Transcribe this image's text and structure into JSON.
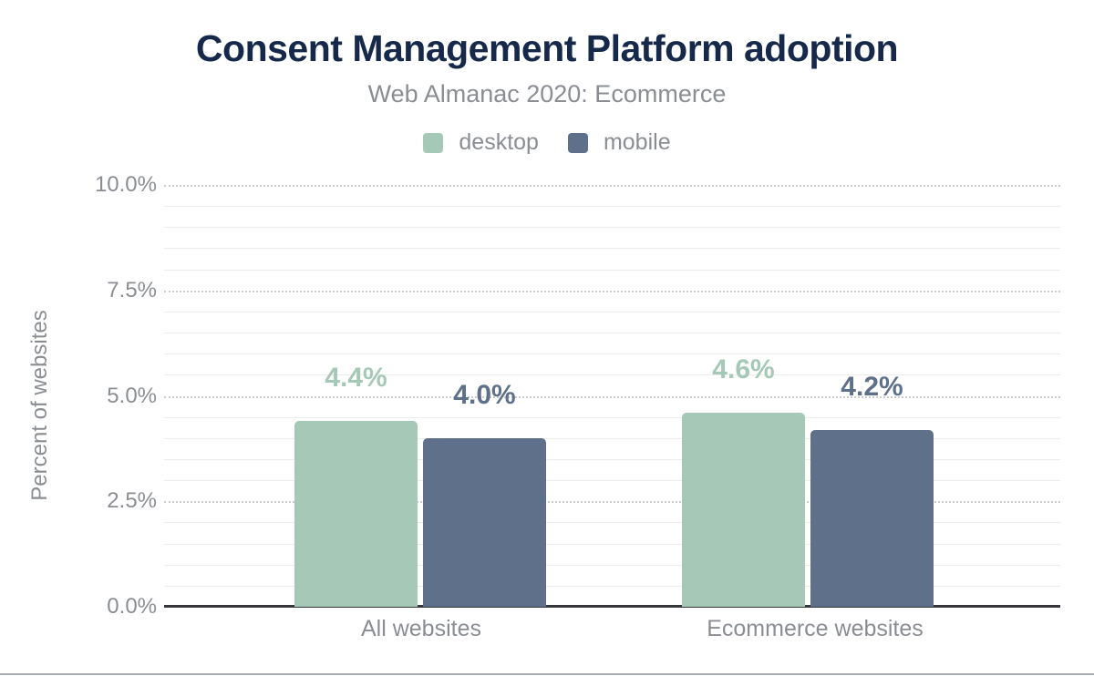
{
  "header": {
    "title": "Consent Management Platform adoption",
    "subtitle": "Web Almanac 2020: Ecommerce"
  },
  "colors": {
    "title": "#16294b",
    "text_muted": "#8a8e93",
    "desktop": "#a5c9b6",
    "mobile": "#5e708a",
    "axis_line": "#35373a",
    "grid_major": "#c9cdd0",
    "grid_minor": "#ececec",
    "divider": "#a8abad"
  },
  "legend": {
    "items": [
      {
        "label": "desktop",
        "color": "#a5c9b6"
      },
      {
        "label": "mobile",
        "color": "#5e708a"
      }
    ]
  },
  "chart_data": {
    "type": "bar",
    "title": "Consent Management Platform adoption",
    "subtitle": "Web Almanac 2020: Ecommerce",
    "categories": [
      "All websites",
      "Ecommerce websites"
    ],
    "series": [
      {
        "name": "desktop",
        "color": "#a5c9b6",
        "values": [
          4.4,
          4.6
        ],
        "data_labels": [
          "4.4%",
          "4.6%"
        ]
      },
      {
        "name": "mobile",
        "color": "#5e708a",
        "values": [
          4.0,
          4.2
        ],
        "data_labels": [
          "4.0%",
          "4.2%"
        ]
      }
    ],
    "xlabel": "",
    "ylabel": "Percent of websites",
    "ylim": [
      0,
      10
    ],
    "yticks": [
      {
        "value": 0,
        "label": "0.0%"
      },
      {
        "value": 2.5,
        "label": "2.5%"
      },
      {
        "value": 5,
        "label": "5.0%"
      },
      {
        "value": 7.5,
        "label": "7.5%"
      },
      {
        "value": 10,
        "label": "10.0%"
      }
    ],
    "grid": {
      "minor_step": 0.5,
      "major_step": 2.5,
      "minor_style": "solid",
      "major_style": "dotted"
    },
    "legend_position": "top"
  }
}
